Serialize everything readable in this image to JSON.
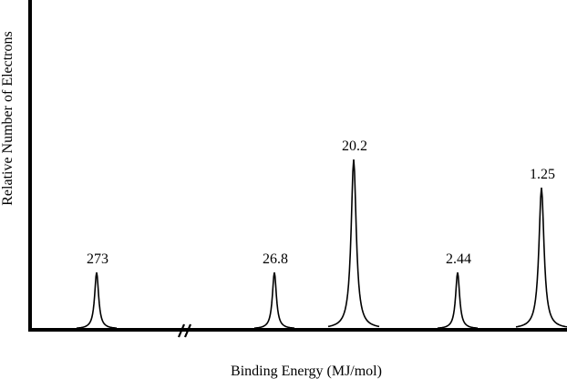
{
  "chart_data": {
    "type": "line",
    "xlabel": "Binding Energy (MJ/mol)",
    "ylabel": "Relative Number of Electrons",
    "x_axis_reversed": true,
    "axis_break": "between 273 and 26.8",
    "grid": false,
    "legend": "none",
    "peaks": [
      {
        "label": "273",
        "binding_energy": 273,
        "relative_electrons": 1
      },
      {
        "label": "26.8",
        "binding_energy": 26.8,
        "relative_electrons": 1
      },
      {
        "label": "20.2",
        "binding_energy": 20.2,
        "relative_electrons": 3
      },
      {
        "label": "2.44",
        "binding_energy": 2.44,
        "relative_electrons": 1
      },
      {
        "label": "1.25",
        "binding_energy": 1.25,
        "relative_electrons": 2.5
      }
    ]
  }
}
